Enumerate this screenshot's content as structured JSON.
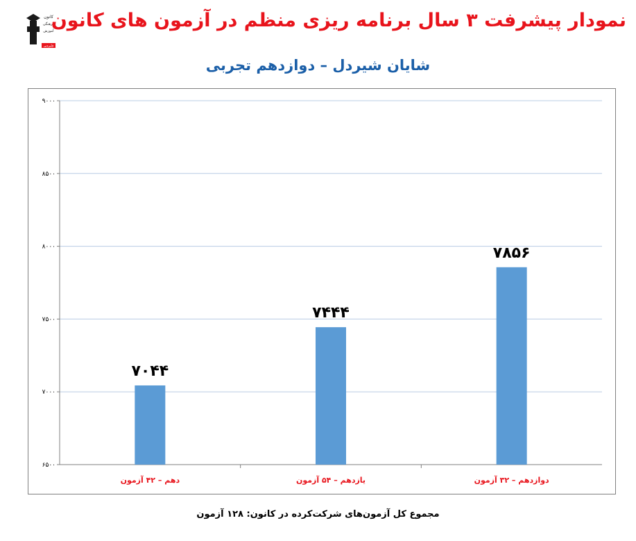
{
  "header": {
    "title": "نمودار پیشرفت ۳ سال برنامه ریزی منظم در آزمون های کانون",
    "subtitle": "شایان شیردل – دوازدهم تجربی",
    "logo_lines": [
      "کانون",
      "فرهنگی",
      "آموزش",
      "قلم‌چی"
    ]
  },
  "footer": {
    "text": "مجموع کل آزمون‌های شرکت‌کرده در کانون:  ۱۲۸ آزمون"
  },
  "colors": {
    "title": "#e8141c",
    "subtitle": "#1b5fa8",
    "bar": "#5b9bd5",
    "category_label": "#e8141c",
    "gridline": "#b8cce4"
  },
  "chart_data": {
    "type": "bar",
    "categories": [
      "دهم – ۴۲ آزمون",
      "یازدهم – ۵۴ آزمون",
      "دوازدهم – ۳۲ آزمون"
    ],
    "values": [
      7044,
      7444,
      7856
    ],
    "value_labels": [
      "۷۰۴۴",
      "۷۴۴۴",
      "۷۸۵۶"
    ],
    "ylim": [
      6500,
      9000
    ],
    "yticks": [
      6500,
      7000,
      7500,
      8000,
      8500,
      9000
    ],
    "ytick_labels": [
      "۶۵۰۰",
      "۷۰۰۰",
      "۷۵۰۰",
      "۸۰۰۰",
      "۸۵۰۰",
      "۹۰۰۰"
    ],
    "xlabel": "",
    "ylabel": "",
    "grid": true,
    "legend": "none"
  }
}
